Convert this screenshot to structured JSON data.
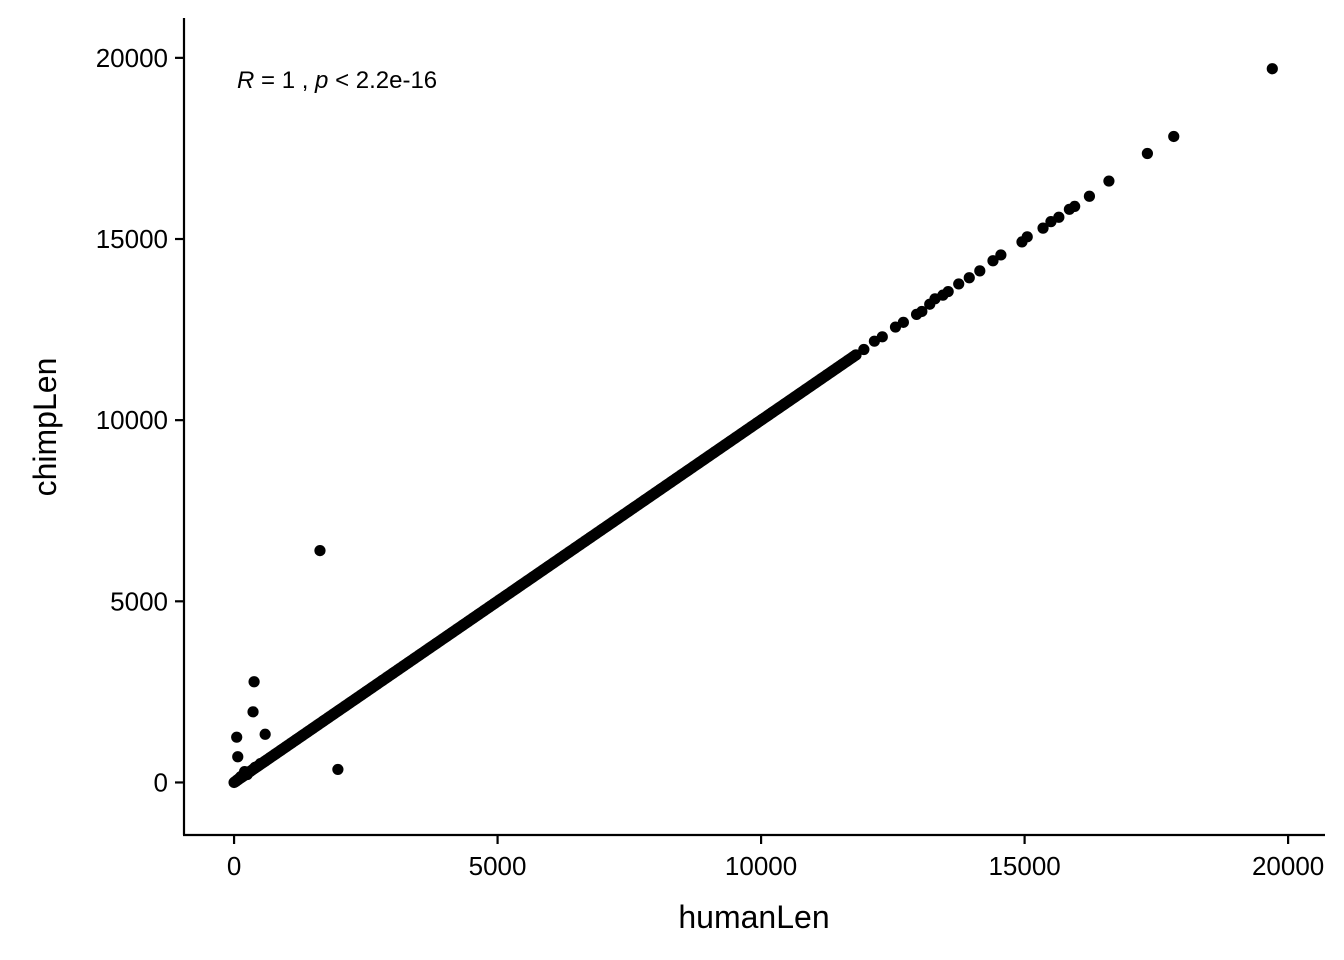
{
  "chart_data": {
    "type": "scatter",
    "xlabel": "humanLen",
    "ylabel": "chimpLen",
    "xlim": [
      -950,
      20700
    ],
    "ylim": [
      -1450,
      21100
    ],
    "xticks": [
      0,
      5000,
      10000,
      15000,
      20000
    ],
    "yticks": [
      0,
      5000,
      10000,
      15000,
      20000
    ],
    "xtick_labels": [
      "0",
      "5000",
      "10000",
      "15000",
      "20000"
    ],
    "ytick_labels": [
      "0",
      "5000",
      "10000",
      "15000",
      "20000"
    ],
    "grid": false,
    "annotation": {
      "r_symbol": "R",
      "r_text": " = 1 , ",
      "p_symbol": "p",
      "p_text": " < 2.2e-16"
    },
    "points": [
      [
        19700,
        19700
      ],
      [
        17830,
        17830
      ],
      [
        17330,
        17360
      ],
      [
        16600,
        16600
      ],
      [
        16230,
        16180
      ],
      [
        15950,
        15900
      ],
      [
        15850,
        15820
      ],
      [
        15650,
        15600
      ],
      [
        15500,
        15480
      ],
      [
        15350,
        15300
      ],
      [
        15050,
        15060
      ],
      [
        14950,
        14920
      ],
      [
        14550,
        14560
      ],
      [
        14400,
        14400
      ],
      [
        14150,
        14120
      ],
      [
        13950,
        13930
      ],
      [
        13750,
        13760
      ],
      [
        13550,
        13550
      ],
      [
        13450,
        13450
      ],
      [
        13300,
        13350
      ],
      [
        13200,
        13200
      ],
      [
        13050,
        13000
      ],
      [
        12950,
        12920
      ],
      [
        12700,
        12700
      ],
      [
        12550,
        12570
      ],
      [
        12300,
        12300
      ],
      [
        12150,
        12180
      ],
      [
        11950,
        11950
      ],
      [
        11800,
        11800
      ],
      [
        1630,
        6400
      ],
      [
        380,
        2780
      ],
      [
        360,
        1950
      ],
      [
        590,
        1330
      ],
      [
        50,
        1250
      ],
      [
        70,
        710
      ],
      [
        1970,
        360
      ],
      [
        20,
        20
      ],
      [
        40,
        40
      ],
      [
        60,
        70
      ],
      [
        90,
        100
      ],
      [
        120,
        150
      ],
      [
        150,
        180
      ],
      [
        200,
        300
      ],
      [
        250,
        220
      ],
      [
        310,
        310
      ],
      [
        400,
        420
      ],
      [
        500,
        520
      ]
    ],
    "diagonal_dense": {
      "from": 0,
      "to": 11800,
      "step": 25
    }
  }
}
